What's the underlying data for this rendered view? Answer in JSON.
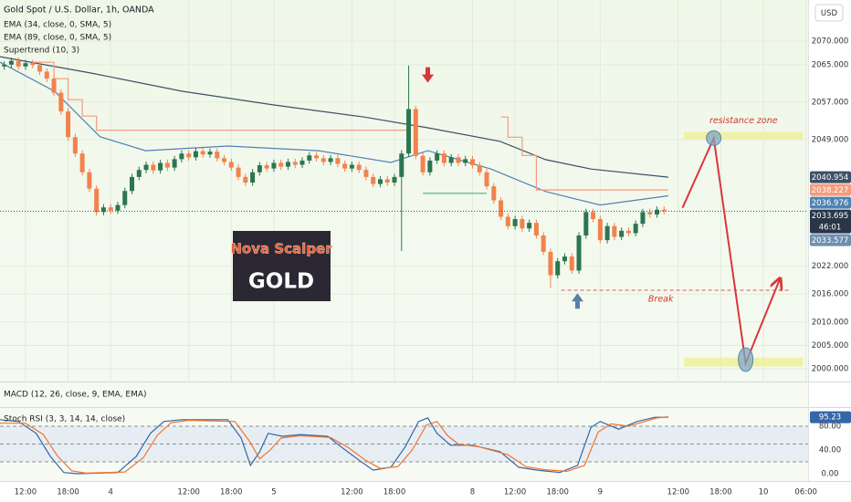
{
  "chart_data": [
    {
      "type": "candlestick",
      "title": "Gold Spot / U.S. Dollar, 1h, OANDA",
      "currency": "USD",
      "x": [
        -3,
        -2,
        -1,
        0,
        1,
        2,
        3,
        4,
        5,
        6,
        7,
        8,
        9,
        10,
        11,
        12,
        13,
        14,
        15,
        16,
        17,
        18,
        19,
        20,
        21,
        22,
        23,
        24,
        25,
        26,
        27,
        28,
        29,
        30,
        31,
        32,
        33,
        34,
        35,
        36,
        37,
        38,
        39,
        40,
        41,
        42,
        43,
        44,
        45,
        46,
        47,
        48,
        49,
        50,
        51,
        52,
        53,
        54,
        55,
        56,
        57,
        58,
        59,
        60,
        61,
        62,
        63,
        64,
        65,
        66,
        67,
        68,
        69,
        70,
        71,
        72,
        73,
        74,
        75,
        76,
        77,
        78,
        79,
        80,
        81,
        82,
        83,
        84,
        85,
        86,
        87,
        88,
        89,
        90
      ],
      "open": [
        2064.6,
        2065.0,
        2065.8,
        2064.6,
        2065.3,
        2064.9,
        2063.5,
        2062.0,
        2059.0,
        2055.0,
        2049.5,
        2046.0,
        2042.0,
        2038.5,
        2033.5,
        2034.5,
        2033.8,
        2035.0,
        2038.0,
        2041.0,
        2042.5,
        2043.6,
        2042.4,
        2044.0,
        2043.0,
        2044.8,
        2046.0,
        2045.2,
        2046.5,
        2045.8,
        2046.4,
        2045.0,
        2044.2,
        2043.0,
        2041.0,
        2039.8,
        2042.0,
        2043.5,
        2042.8,
        2044.0,
        2043.2,
        2044.2,
        2043.6,
        2044.5,
        2045.6,
        2045.0,
        2044.2,
        2045.0,
        2043.8,
        2042.8,
        2043.6,
        2042.5,
        2041.0,
        2039.5,
        2040.5,
        2039.8,
        2041.0,
        2046.0,
        2055.5,
        2045.5,
        2042.0,
        2044.5,
        2046.0,
        2044.0,
        2045.2,
        2044.0,
        2044.8,
        2043.5,
        2042.0,
        2039.0,
        2036.0,
        2032.5,
        2030.5,
        2032.0,
        2030.0,
        2031.2,
        2028.5,
        2025.0,
        2020.0,
        2023.0,
        2024.0,
        2021.0,
        2028.5,
        2033.5,
        2032.0,
        2027.5,
        2030.5,
        2028.2,
        2029.5,
        2029.0,
        2031.0,
        2033.5,
        2033.0,
        2034.0
      ],
      "high": [
        2065.7,
        2066.5,
        2066.5,
        2066.0,
        2066.0,
        2065.6,
        2064.2,
        2062.7,
        2059.7,
        2055.7,
        2050.2,
        2046.7,
        2042.7,
        2039.2,
        2035.2,
        2035.2,
        2035.7,
        2038.7,
        2041.7,
        2043.2,
        2044.3,
        2044.3,
        2044.7,
        2044.7,
        2045.5,
        2046.7,
        2046.7,
        2047.2,
        2047.2,
        2047.1,
        2047.1,
        2045.7,
        2044.9,
        2043.7,
        2041.7,
        2042.7,
        2044.2,
        2044.2,
        2044.7,
        2044.7,
        2044.9,
        2044.9,
        2045.2,
        2046.3,
        2046.3,
        2045.7,
        2045.7,
        2045.7,
        2044.5,
        2044.3,
        2044.3,
        2043.2,
        2041.7,
        2041.2,
        2041.2,
        2041.7,
        2046.7,
        2064.8,
        2056.2,
        2046.2,
        2045.2,
        2046.7,
        2046.7,
        2045.9,
        2045.9,
        2045.5,
        2045.5,
        2044.2,
        2042.7,
        2039.7,
        2036.7,
        2033.2,
        2032.7,
        2032.7,
        2031.9,
        2031.9,
        2029.2,
        2025.7,
        2023.7,
        2024.7,
        2024.7,
        2029.2,
        2034.2,
        2034.2,
        2032.7,
        2031.2,
        2031.2,
        2030.2,
        2030.2,
        2031.7,
        2034.2,
        2034.2,
        2034.7,
        2034.7
      ],
      "low": [
        2063.9,
        2064.3,
        2063.9,
        2063.9,
        2064.2,
        2062.8,
        2061.3,
        2058.3,
        2054.3,
        2048.8,
        2045.3,
        2041.3,
        2037.8,
        2032.8,
        2032.8,
        2033.1,
        2033.1,
        2034.3,
        2037.3,
        2040.3,
        2041.8,
        2041.7,
        2041.7,
        2042.3,
        2042.3,
        2044.1,
        2044.5,
        2044.5,
        2045.1,
        2045.1,
        2044.3,
        2043.5,
        2042.3,
        2040.3,
        2039.1,
        2039.1,
        2041.3,
        2042.1,
        2042.1,
        2042.5,
        2042.5,
        2042.9,
        2042.9,
        2043.8,
        2044.3,
        2043.5,
        2043.5,
        2043.1,
        2042.1,
        2042.1,
        2041.8,
        2040.3,
        2038.8,
        2038.8,
        2039.1,
        2039.1,
        2025.2,
        2045.3,
        2044.8,
        2041.3,
        2041.3,
        2043.8,
        2043.3,
        2043.3,
        2043.3,
        2043.3,
        2042.8,
        2041.3,
        2038.3,
        2035.3,
        2031.8,
        2029.8,
        2029.8,
        2029.3,
        2029.3,
        2027.8,
        2024.3,
        2017.3,
        2019.3,
        2022.3,
        2020.3,
        2020.3,
        2027.8,
        2031.3,
        2026.8,
        2026.8,
        2027.5,
        2027.5,
        2028.3,
        2028.3,
        2030.3,
        2032.3,
        2032.3,
        2033.0
      ],
      "close": [
        2065.0,
        2065.8,
        2064.6,
        2065.3,
        2064.9,
        2063.5,
        2062.0,
        2059.0,
        2055.0,
        2049.5,
        2046.0,
        2042.0,
        2038.5,
        2033.5,
        2034.5,
        2033.8,
        2035.0,
        2038.0,
        2041.0,
        2042.5,
        2043.6,
        2042.4,
        2044.0,
        2043.0,
        2044.8,
        2046.0,
        2045.2,
        2046.5,
        2045.8,
        2046.4,
        2045.0,
        2044.2,
        2043.0,
        2041.0,
        2039.8,
        2042.0,
        2043.5,
        2042.8,
        2044.0,
        2043.2,
        2044.2,
        2043.6,
        2044.5,
        2045.6,
        2045.0,
        2044.2,
        2045.0,
        2043.8,
        2042.8,
        2043.6,
        2042.5,
        2041.0,
        2039.5,
        2040.5,
        2039.8,
        2041.0,
        2046.0,
        2055.5,
        2045.5,
        2042.0,
        2044.5,
        2046.0,
        2044.0,
        2045.2,
        2044.0,
        2044.8,
        2043.5,
        2042.0,
        2039.0,
        2036.0,
        2032.5,
        2030.5,
        2032.0,
        2030.0,
        2031.2,
        2028.5,
        2025.0,
        2020.0,
        2023.0,
        2024.0,
        2021.0,
        2028.5,
        2033.5,
        2032.0,
        2027.5,
        2030.5,
        2028.2,
        2029.5,
        2029.0,
        2031.0,
        2033.5,
        2033.0,
        2034.0,
        2033.695
      ],
      "up_color": "#2b7650",
      "down_color": "#f2824e",
      "xlim": [
        -3.6,
        110.3
      ],
      "xticks": [
        {
          "value": 0,
          "label": "12:00"
        },
        {
          "value": 6,
          "label": "18:00"
        },
        {
          "value": 12,
          "label": "4"
        },
        {
          "value": 23,
          "label": "12:00"
        },
        {
          "value": 29,
          "label": "18:00"
        },
        {
          "value": 35,
          "label": "5"
        },
        {
          "value": 46,
          "label": "12:00"
        },
        {
          "value": 52,
          "label": "18:00"
        },
        {
          "value": 63,
          "label": "8"
        },
        {
          "value": 69,
          "label": "12:00"
        },
        {
          "value": 75,
          "label": "18:00"
        },
        {
          "value": 81,
          "label": "9"
        },
        {
          "value": 92,
          "label": "12:00"
        },
        {
          "value": 98,
          "label": "18:00"
        },
        {
          "value": 104,
          "label": "10"
        },
        {
          "value": 110,
          "label": "06:00"
        }
      ],
      "ylim": [
        1997.3,
        2078.8
      ],
      "yticks": [
        {
          "value": 2070,
          "label": "2070.000"
        },
        {
          "value": 2065,
          "label": "2065.000"
        },
        {
          "value": 2057,
          "label": "2057.000"
        },
        {
          "value": 2049,
          "label": "2049.000"
        },
        {
          "value": 2022,
          "label": "2022.000"
        },
        {
          "value": 2016,
          "label": "2016.000"
        },
        {
          "value": 2010,
          "label": "2010.000"
        },
        {
          "value": 2005,
          "label": "2005.000"
        },
        {
          "value": 2000,
          "label": "2000.000"
        }
      ],
      "grid": true,
      "series": [
        {
          "name": "EMA (34, close, 0, SMA, 5)",
          "color": "#4f82b3",
          "x": [
            -3.6,
            4.1,
            10.5,
            16.9,
            28.5,
            41.3,
            51.5,
            56.7,
            65.6,
            73.3,
            81,
            90.6
          ],
          "values": [
            2065.5,
            2059.3,
            2049.6,
            2046.6,
            2047.6,
            2046.6,
            2044.1,
            2046.6,
            2042.7,
            2037.9,
            2035.0,
            2036.976
          ]
        },
        {
          "name": "EMA (89, close, 0, SMA, 5)",
          "color": "#3f4f66",
          "x": [
            -3.6,
            9.2,
            22.1,
            34.9,
            47.7,
            56.7,
            66.9,
            73.3,
            79.7,
            90.6
          ],
          "values": [
            2066.7,
            2063.2,
            2059.3,
            2056.4,
            2053.8,
            2051.5,
            2048.6,
            2044.7,
            2042.7,
            2040.954
          ]
        },
        {
          "name": "Supertrend (10, 3)",
          "color": "#f39b7d",
          "up_color": "#4caf7a",
          "x": [
            1,
            4,
            4,
            6,
            6,
            8,
            8,
            10,
            10,
            54,
            55,
            56,
            65,
            66,
            67,
            68,
            68,
            70,
            70,
            72,
            72,
            90.6
          ],
          "values": [
            2065.5,
            2065.5,
            2062.0,
            2062.0,
            2057.5,
            2057.5,
            2054.0,
            2054.0,
            2051.0,
            2051.0,
            null,
            2037.5,
            2037.5,
            null,
            2053.8,
            2053.8,
            2049.5,
            2049.5,
            2045.6,
            2045.6,
            2038.227,
            2038.227
          ]
        }
      ],
      "price_labels": [
        {
          "value": 2033.577,
          "color": "#6f8fb0"
        }
      ],
      "countdown": "46:01",
      "zones": [
        {
          "label": "resistance zone",
          "low": 2049.0,
          "high": 2050.6,
          "start": 92.8,
          "end": 109.6
        },
        {
          "low": 2000.5,
          "high": 2002.4,
          "start": 92.8,
          "end": 109.6
        }
      ],
      "break_level": {
        "label": "Break",
        "value": 2016.8,
        "start": 75.5,
        "end": 107.7
      },
      "projection": {
        "x": [
          92.6,
          97,
          101.5,
          106.3
        ],
        "values": [
          2034.4,
          2049.3,
          2001.2,
          2019.1
        ]
      },
      "markers": [
        {
          "direction": "down",
          "x": 56.7,
          "value": 2062.5,
          "color": "#d9363b"
        },
        {
          "direction": "up",
          "x": 77.8,
          "value": 2014.8,
          "color": "#5b7fa6"
        }
      ],
      "logo": [
        "Nova Scalper",
        "GOLD"
      ]
    },
    {
      "type": "macd",
      "title": "MACD (12, 26, close, 9, EMA, EMA)"
    },
    {
      "type": "line",
      "title": "Stoch RSI (3, 3, 14, 14, close)",
      "ylim": [
        -12.3,
        109.2
      ],
      "yticks": [
        {
          "value": 80,
          "label": "80.00"
        },
        {
          "value": 40,
          "label": "40.00"
        },
        {
          "value": 0,
          "label": "0.00"
        }
      ],
      "levels": [
        80,
        50,
        20
      ],
      "band": [
        20,
        80
      ],
      "series": [
        {
          "color": "#3566a8",
          "x": [
            -3.6,
            -1,
            1.5,
            3.5,
            5.4,
            7.3,
            13,
            15.6,
            17.6,
            19.5,
            22,
            28.5,
            30.4,
            31.7,
            33,
            34.2,
            36.2,
            38.7,
            42.6,
            44.5,
            47.1,
            49,
            51.5,
            53.5,
            55.4,
            56.7,
            58,
            59.9,
            63,
            66.9,
            69.5,
            72.1,
            75.3,
            77.8,
            79.7,
            81,
            83.6,
            86.2,
            88.7,
            90.6
          ],
          "values": [
            91,
            88,
            68,
            29,
            2,
            0,
            2,
            29,
            68,
            88,
            91,
            91,
            60,
            14,
            37,
            68,
            63,
            66,
            63,
            45,
            22,
            6,
            11,
            45,
            88,
            94,
            68,
            48,
            48,
            37,
            11,
            6,
            2,
            14,
            78,
            88,
            75,
            88,
            95,
            95.23
          ]
        },
        {
          "color": "#f3732f",
          "x": [
            -3.6,
            0,
            2.5,
            4.5,
            6.5,
            8.5,
            14,
            16.6,
            18.6,
            20.5,
            23,
            29.5,
            31.5,
            33,
            34.5,
            36,
            38.7,
            43,
            45.5,
            48,
            50,
            52.5,
            54.5,
            56.5,
            58,
            59.5,
            61,
            64,
            68,
            70.5,
            73,
            76.3,
            78.8,
            80.7,
            82.5,
            85,
            87,
            89,
            90.6
          ],
          "values": [
            85,
            85,
            66,
            30,
            5,
            1,
            3,
            27,
            65,
            86,
            90,
            88,
            56,
            25,
            40,
            60,
            64,
            61,
            44,
            22,
            9,
            12,
            40,
            82,
            88,
            64,
            50,
            45,
            32,
            12,
            7,
            4,
            14,
            70,
            84,
            80,
            87,
            94,
            96
          ]
        }
      ]
    }
  ]
}
